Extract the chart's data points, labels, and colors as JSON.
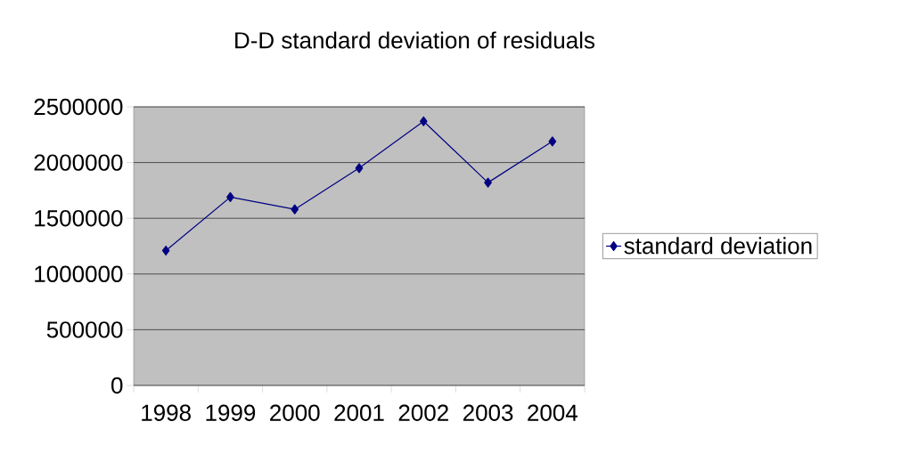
{
  "chart_data": {
    "type": "line",
    "title": "D-D standard deviation of residuals",
    "categories": [
      "1998",
      "1999",
      "2000",
      "2001",
      "2002",
      "2003",
      "2004"
    ],
    "series": [
      {
        "name": "standard deviation",
        "color": "#000080",
        "values": [
          1210000,
          1690000,
          1580000,
          1950000,
          2370000,
          1820000,
          2190000
        ]
      }
    ],
    "ylim": [
      0,
      2500000
    ],
    "yticks": [
      0,
      500000,
      1000000,
      1500000,
      2000000,
      2500000
    ],
    "grid": "y",
    "legend": "right",
    "marker": "diamond",
    "line_style": "solid"
  }
}
